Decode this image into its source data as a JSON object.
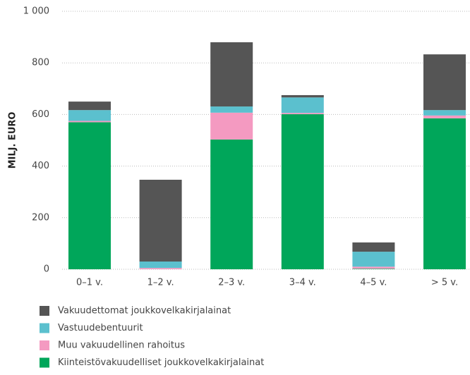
{
  "chart_data": {
    "type": "stacked_bar",
    "ylabel": "MILJ. EURO",
    "categories": [
      "0–1 v.",
      "1–2 v.",
      "2–3 v.",
      "3–4 v.",
      "4–5 v.",
      "> 5 v."
    ],
    "series": [
      {
        "name": "Kiinteistövakuudelliset joukkovelkakirjalainat",
        "color": "#00a65a",
        "values": [
          570,
          0,
          503,
          601,
          2,
          585
        ]
      },
      {
        "name": "Muu vakuudellinen rahoitus",
        "color": "#f49ac1",
        "values": [
          5,
          5,
          104,
          5,
          8,
          11
        ]
      },
      {
        "name": "Vastuudebentuurit",
        "color": "#5bc0ce",
        "values": [
          42,
          25,
          24,
          60,
          58,
          21
        ]
      },
      {
        "name": "Vakuudettomat joukkovelkakirjalainat",
        "color": "#555555",
        "values": [
          33,
          317,
          249,
          9,
          36,
          216
        ]
      }
    ],
    "ylim": [
      0,
      1000
    ],
    "yticks": [
      0,
      200,
      400,
      600,
      800,
      {
        "value": 1000,
        "label": "1 000"
      }
    ],
    "grid": true
  }
}
